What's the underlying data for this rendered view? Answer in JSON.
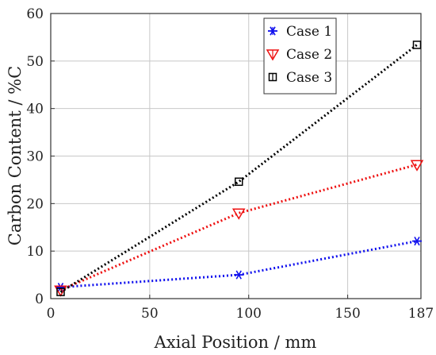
{
  "chart_data": {
    "type": "line",
    "xlabel": "Axial Position  / mm",
    "ylabel": "Carbon Content  / %C",
    "xlim": [
      0,
      187
    ],
    "ylim": [
      0,
      60
    ],
    "xticks": [
      0,
      50,
      100,
      150,
      187
    ],
    "yticks": [
      0,
      10,
      20,
      30,
      40,
      50,
      60
    ],
    "grid": true,
    "legend_position": "top-right",
    "series": [
      {
        "name": "Case 1",
        "color": "#1010ee",
        "marker": "asterisk",
        "x": [
          5,
          95,
          185
        ],
        "y": [
          2.4,
          5.0,
          12.1
        ]
      },
      {
        "name": "Case 2",
        "color": "#ee1010",
        "marker": "triangle-down",
        "x": [
          5,
          95,
          185
        ],
        "y": [
          1.8,
          18.0,
          28.2
        ]
      },
      {
        "name": "Case 3",
        "color": "#000000",
        "marker": "square",
        "x": [
          5,
          95,
          185
        ],
        "y": [
          1.4,
          24.6,
          53.4
        ]
      }
    ]
  }
}
